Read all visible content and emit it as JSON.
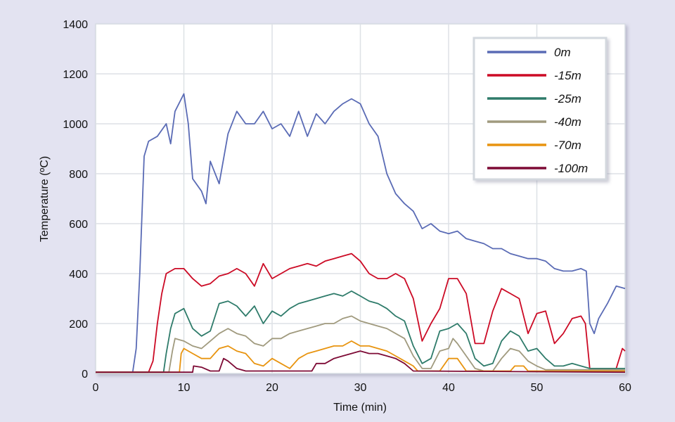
{
  "chart_data": {
    "type": "line",
    "xlabel": "Time (min)",
    "ylabel": "Temperature (ºC)",
    "xlim": [
      0,
      60
    ],
    "ylim": [
      0,
      1400
    ],
    "xticks": [
      0,
      10,
      20,
      30,
      40,
      50,
      60
    ],
    "yticks": [
      0,
      200,
      400,
      600,
      800,
      1000,
      1200,
      1400
    ],
    "grid": true,
    "legend_position": "top-right",
    "series": [
      {
        "name": "0m",
        "color": "#5a6bb5",
        "points": [
          [
            0,
            5
          ],
          [
            4.2,
            5
          ],
          [
            4.6,
            100
          ],
          [
            5,
            400
          ],
          [
            5.5,
            870
          ],
          [
            6,
            930
          ],
          [
            7,
            950
          ],
          [
            8,
            1000
          ],
          [
            8.5,
            920
          ],
          [
            9,
            1050
          ],
          [
            10,
            1120
          ],
          [
            10.5,
            1000
          ],
          [
            11,
            780
          ],
          [
            12,
            730
          ],
          [
            12.5,
            680
          ],
          [
            13,
            850
          ],
          [
            14,
            760
          ],
          [
            15,
            960
          ],
          [
            16,
            1050
          ],
          [
            17,
            1000
          ],
          [
            18,
            1000
          ],
          [
            19,
            1050
          ],
          [
            20,
            980
          ],
          [
            21,
            1000
          ],
          [
            22,
            950
          ],
          [
            23,
            1050
          ],
          [
            24,
            950
          ],
          [
            25,
            1040
          ],
          [
            26,
            1000
          ],
          [
            27,
            1050
          ],
          [
            28,
            1080
          ],
          [
            29,
            1100
          ],
          [
            30,
            1080
          ],
          [
            31,
            1000
          ],
          [
            32,
            950
          ],
          [
            33,
            800
          ],
          [
            34,
            720
          ],
          [
            35,
            680
          ],
          [
            36,
            650
          ],
          [
            37,
            580
          ],
          [
            38,
            600
          ],
          [
            39,
            570
          ],
          [
            40,
            560
          ],
          [
            41,
            570
          ],
          [
            42,
            540
          ],
          [
            43,
            530
          ],
          [
            44,
            520
          ],
          [
            45,
            500
          ],
          [
            46,
            500
          ],
          [
            47,
            480
          ],
          [
            48,
            470
          ],
          [
            49,
            460
          ],
          [
            50,
            460
          ],
          [
            51,
            450
          ],
          [
            52,
            420
          ],
          [
            53,
            410
          ],
          [
            54,
            410
          ],
          [
            55,
            420
          ],
          [
            55.6,
            410
          ],
          [
            56,
            200
          ],
          [
            56.5,
            160
          ],
          [
            57,
            220
          ],
          [
            58,
            280
          ],
          [
            59,
            350
          ],
          [
            60,
            340
          ]
        ]
      },
      {
        "name": "-15m",
        "color": "#cc0a25",
        "points": [
          [
            0,
            5
          ],
          [
            6,
            5
          ],
          [
            6.5,
            50
          ],
          [
            7,
            200
          ],
          [
            7.5,
            320
          ],
          [
            8,
            400
          ],
          [
            9,
            420
          ],
          [
            10,
            420
          ],
          [
            11,
            380
          ],
          [
            12,
            350
          ],
          [
            13,
            360
          ],
          [
            14,
            390
          ],
          [
            15,
            400
          ],
          [
            16,
            420
          ],
          [
            17,
            400
          ],
          [
            18,
            350
          ],
          [
            19,
            440
          ],
          [
            20,
            380
          ],
          [
            21,
            400
          ],
          [
            22,
            420
          ],
          [
            23,
            430
          ],
          [
            24,
            440
          ],
          [
            25,
            430
          ],
          [
            26,
            450
          ],
          [
            27,
            460
          ],
          [
            28,
            470
          ],
          [
            29,
            480
          ],
          [
            30,
            450
          ],
          [
            31,
            400
          ],
          [
            32,
            380
          ],
          [
            33,
            380
          ],
          [
            34,
            400
          ],
          [
            35,
            380
          ],
          [
            36,
            300
          ],
          [
            37,
            130
          ],
          [
            38,
            200
          ],
          [
            39,
            260
          ],
          [
            40,
            380
          ],
          [
            41,
            380
          ],
          [
            42,
            320
          ],
          [
            43,
            120
          ],
          [
            44,
            120
          ],
          [
            45,
            250
          ],
          [
            46,
            340
          ],
          [
            47,
            320
          ],
          [
            48,
            300
          ],
          [
            49,
            160
          ],
          [
            50,
            240
          ],
          [
            51,
            250
          ],
          [
            52,
            120
          ],
          [
            53,
            160
          ],
          [
            54,
            220
          ],
          [
            55,
            230
          ],
          [
            55.5,
            200
          ],
          [
            56,
            20
          ],
          [
            59,
            20
          ],
          [
            59.7,
            100
          ],
          [
            60,
            90
          ]
        ]
      },
      {
        "name": "-25m",
        "color": "#2e7b6a",
        "points": [
          [
            0,
            5
          ],
          [
            7.7,
            5
          ],
          [
            8,
            80
          ],
          [
            8.5,
            180
          ],
          [
            9,
            240
          ],
          [
            10,
            260
          ],
          [
            11,
            180
          ],
          [
            12,
            150
          ],
          [
            13,
            170
          ],
          [
            14,
            280
          ],
          [
            15,
            290
          ],
          [
            16,
            270
          ],
          [
            17,
            230
          ],
          [
            18,
            270
          ],
          [
            19,
            200
          ],
          [
            20,
            250
          ],
          [
            21,
            230
          ],
          [
            22,
            260
          ],
          [
            23,
            280
          ],
          [
            24,
            290
          ],
          [
            25,
            300
          ],
          [
            26,
            310
          ],
          [
            27,
            320
          ],
          [
            28,
            310
          ],
          [
            29,
            330
          ],
          [
            30,
            310
          ],
          [
            31,
            290
          ],
          [
            32,
            280
          ],
          [
            33,
            260
          ],
          [
            34,
            230
          ],
          [
            35,
            210
          ],
          [
            36,
            110
          ],
          [
            37,
            40
          ],
          [
            38,
            60
          ],
          [
            39,
            170
          ],
          [
            40,
            180
          ],
          [
            41,
            200
          ],
          [
            42,
            160
          ],
          [
            43,
            60
          ],
          [
            44,
            30
          ],
          [
            45,
            40
          ],
          [
            46,
            130
          ],
          [
            47,
            170
          ],
          [
            48,
            150
          ],
          [
            49,
            90
          ],
          [
            50,
            100
          ],
          [
            51,
            60
          ],
          [
            52,
            30
          ],
          [
            53,
            30
          ],
          [
            54,
            40
          ],
          [
            55,
            30
          ],
          [
            56,
            20
          ],
          [
            60,
            20
          ]
        ]
      },
      {
        "name": "-40m",
        "color": "#a09a7e",
        "points": [
          [
            0,
            5
          ],
          [
            8.3,
            5
          ],
          [
            8.7,
            90
          ],
          [
            9,
            140
          ],
          [
            10,
            130
          ],
          [
            11,
            110
          ],
          [
            12,
            100
          ],
          [
            13,
            130
          ],
          [
            14,
            160
          ],
          [
            15,
            180
          ],
          [
            16,
            160
          ],
          [
            17,
            150
          ],
          [
            18,
            120
          ],
          [
            19,
            110
          ],
          [
            20,
            140
          ],
          [
            21,
            140
          ],
          [
            22,
            160
          ],
          [
            23,
            170
          ],
          [
            24,
            180
          ],
          [
            25,
            190
          ],
          [
            26,
            200
          ],
          [
            27,
            200
          ],
          [
            28,
            220
          ],
          [
            29,
            230
          ],
          [
            30,
            210
          ],
          [
            31,
            200
          ],
          [
            32,
            190
          ],
          [
            33,
            180
          ],
          [
            34,
            160
          ],
          [
            35,
            140
          ],
          [
            36,
            70
          ],
          [
            37,
            20
          ],
          [
            38,
            20
          ],
          [
            39,
            90
          ],
          [
            40,
            100
          ],
          [
            40.5,
            140
          ],
          [
            41,
            120
          ],
          [
            42,
            70
          ],
          [
            43,
            20
          ],
          [
            44,
            10
          ],
          [
            45,
            10
          ],
          [
            46,
            60
          ],
          [
            47,
            100
          ],
          [
            48,
            90
          ],
          [
            49,
            50
          ],
          [
            50,
            30
          ],
          [
            51,
            15
          ],
          [
            52,
            15
          ],
          [
            60,
            15
          ]
        ]
      },
      {
        "name": "-70m",
        "color": "#e8940f",
        "points": [
          [
            0,
            5
          ],
          [
            9.5,
            5
          ],
          [
            9.7,
            80
          ],
          [
            10,
            100
          ],
          [
            11,
            80
          ],
          [
            12,
            60
          ],
          [
            13,
            60
          ],
          [
            14,
            100
          ],
          [
            15,
            110
          ],
          [
            16,
            90
          ],
          [
            17,
            80
          ],
          [
            18,
            40
          ],
          [
            19,
            30
          ],
          [
            20,
            60
          ],
          [
            21,
            40
          ],
          [
            22,
            20
          ],
          [
            23,
            60
          ],
          [
            24,
            80
          ],
          [
            25,
            90
          ],
          [
            26,
            100
          ],
          [
            27,
            110
          ],
          [
            28,
            110
          ],
          [
            29,
            130
          ],
          [
            30,
            110
          ],
          [
            31,
            110
          ],
          [
            32,
            100
          ],
          [
            33,
            90
          ],
          [
            34,
            70
          ],
          [
            35,
            50
          ],
          [
            36,
            30
          ],
          [
            36.5,
            10
          ],
          [
            39,
            10
          ],
          [
            40,
            60
          ],
          [
            41,
            60
          ],
          [
            42,
            10
          ],
          [
            47,
            10
          ],
          [
            47.5,
            30
          ],
          [
            48.5,
            30
          ],
          [
            49,
            10
          ],
          [
            60,
            10
          ]
        ]
      },
      {
        "name": "-100m",
        "color": "#7d0a35",
        "points": [
          [
            0,
            5
          ],
          [
            11,
            5
          ],
          [
            11.1,
            30
          ],
          [
            12,
            25
          ],
          [
            13,
            10
          ],
          [
            14,
            10
          ],
          [
            14.5,
            60
          ],
          [
            15,
            50
          ],
          [
            16,
            20
          ],
          [
            17,
            10
          ],
          [
            24.5,
            10
          ],
          [
            25,
            40
          ],
          [
            26,
            40
          ],
          [
            27,
            60
          ],
          [
            28,
            70
          ],
          [
            29,
            80
          ],
          [
            30,
            90
          ],
          [
            31,
            80
          ],
          [
            32,
            80
          ],
          [
            33,
            70
          ],
          [
            34,
            60
          ],
          [
            35,
            40
          ],
          [
            36,
            10
          ],
          [
            60,
            5
          ]
        ]
      }
    ]
  }
}
